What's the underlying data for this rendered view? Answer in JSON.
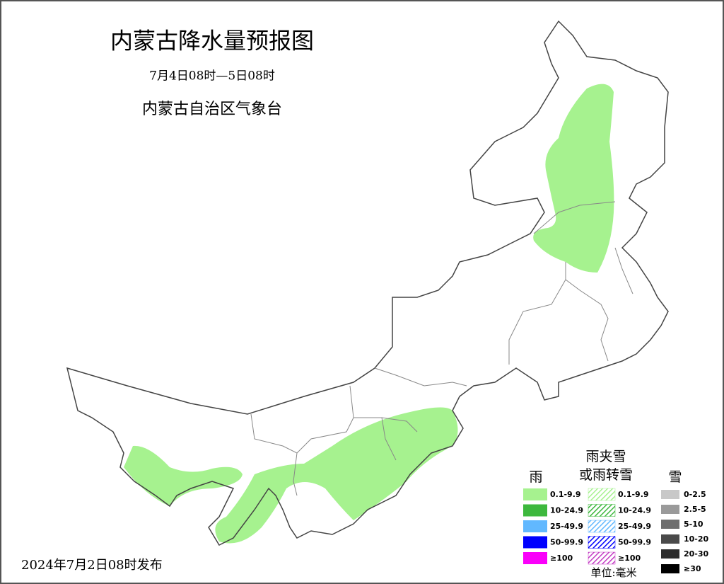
{
  "header": {
    "title": "内蒙古降水量预报图",
    "period": "7月4日08时—5日08时",
    "issuer": "内蒙古自治区气象台"
  },
  "issued": "2024年7月2日08时发布",
  "legend": {
    "rain": {
      "title": "雨",
      "items": [
        {
          "label": "0.1-9.9",
          "color": "#a6f28f"
        },
        {
          "label": "10-24.9",
          "color": "#3db83d"
        },
        {
          "label": "25-49.9",
          "color": "#61b8ff"
        },
        {
          "label": "50-99.9",
          "color": "#0000fe"
        },
        {
          "label": "≥100",
          "color": "#fa00fa"
        }
      ]
    },
    "sleet": {
      "title_lines": [
        "雨夹雪",
        "或雨转雪"
      ],
      "items": [
        {
          "label": "0.1-9.9",
          "color": "#a6f28f"
        },
        {
          "label": "10-24.9",
          "color": "#3db83d"
        },
        {
          "label": "25-49.9",
          "color": "#61b8ff"
        },
        {
          "label": "50-99.9",
          "color": "#0000fe"
        },
        {
          "label": "≥100",
          "color": "#c43bc4"
        }
      ]
    },
    "snow": {
      "title": "雪",
      "items": [
        {
          "label": "0-2.5",
          "color": "#c8c8c8"
        },
        {
          "label": "2.5-5",
          "color": "#9a9a9a"
        },
        {
          "label": "5-10",
          "color": "#6e6e6e"
        },
        {
          "label": "10-20",
          "color": "#4a4a4a"
        },
        {
          "label": "20-30",
          "color": "#2c2c2c"
        },
        {
          "label": "≥30",
          "color": "#000000"
        }
      ]
    },
    "unit": "单位:毫米"
  }
}
